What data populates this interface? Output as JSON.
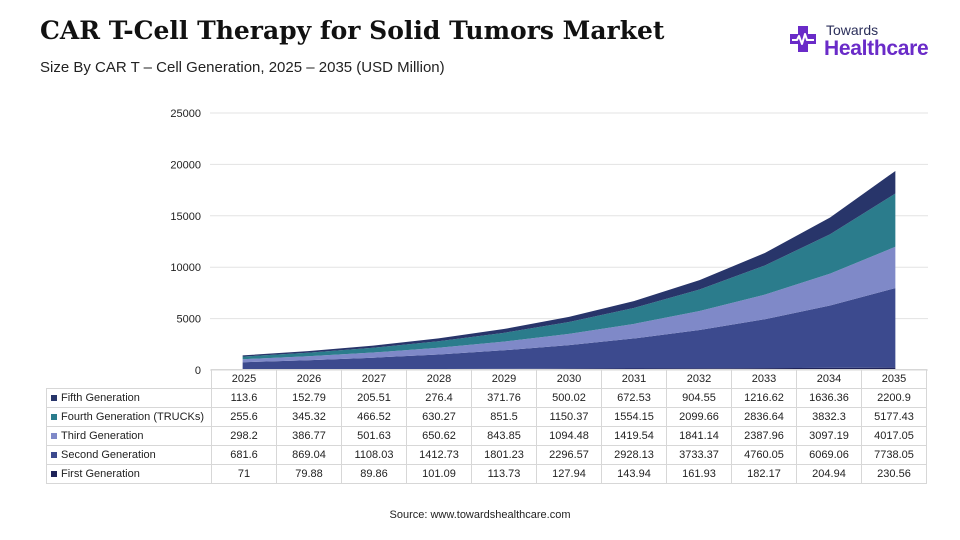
{
  "header": {
    "title": "CAR T-Cell Therapy for Solid Tumors Market",
    "subtitle": "Size By CAR T – Cell Generation, 2025 – 2035 (USD Million)"
  },
  "logo": {
    "line1": "Towards",
    "line2": "Healthcare",
    "colors": {
      "cross": "#6a2bc8",
      "text_dark": "#2b2f5a",
      "text_brand": "#6a2bc8"
    }
  },
  "source": "Source: www.towardshealthcare.com",
  "chart_data": {
    "type": "area",
    "stacked": true,
    "x": [
      "2025",
      "2026",
      "2027",
      "2028",
      "2029",
      "2030",
      "2031",
      "2032",
      "2033",
      "2034",
      "2035"
    ],
    "ylim": [
      0,
      25000
    ],
    "yticks": [
      "0",
      "5000",
      "10000",
      "15000",
      "20000",
      "25000"
    ],
    "grid": true,
    "legend": "data table below chart",
    "series": [
      {
        "name": "First Generation",
        "color": "#1f2359",
        "values": [
          71,
          79.88,
          89.86,
          101.09,
          113.73,
          127.94,
          143.94,
          161.93,
          182.17,
          204.94,
          230.56
        ],
        "display": [
          "71",
          "79.88",
          "89.86",
          "101.09",
          "113.73",
          "127.94",
          "143.94",
          "161.93",
          "182.17",
          "204.94",
          "230.56"
        ]
      },
      {
        "name": "Second Generation",
        "color": "#3c4a8e",
        "values": [
          681.6,
          869.04,
          1108.03,
          1412.73,
          1801.23,
          2296.57,
          2928.13,
          3733.37,
          4760.05,
          6069.06,
          7738.05
        ],
        "display": [
          "681.6",
          "869.04",
          "1108.03",
          "1412.73",
          "1801.23",
          "2296.57",
          "2928.13",
          "3733.37",
          "4760.05",
          "6069.06",
          "7738.05"
        ]
      },
      {
        "name": "Third Generation",
        "color": "#7f89c8",
        "values": [
          298.2,
          386.77,
          501.63,
          650.62,
          843.85,
          1094.48,
          1419.54,
          1841.14,
          2387.96,
          3097.19,
          4017.05
        ],
        "display": [
          "298.2",
          "386.77",
          "501.63",
          "650.62",
          "843.85",
          "1094.48",
          "1419.54",
          "1841.14",
          "2387.96",
          "3097.19",
          "4017.05"
        ]
      },
      {
        "name": "Fourth Generation (TRUCKs)",
        "color": "#2b7c8c",
        "values": [
          255.6,
          345.32,
          466.52,
          630.27,
          851.5,
          1150.37,
          1554.15,
          2099.66,
          2836.64,
          3832.3,
          5177.43
        ],
        "display": [
          "255.6",
          "345.32",
          "466.52",
          "630.27",
          "851.5",
          "1150.37",
          "1554.15",
          "2099.66",
          "2836.64",
          "3832.3",
          "5177.43"
        ]
      },
      {
        "name": "Fifth Generation",
        "color": "#28356a",
        "values": [
          113.6,
          152.79,
          205.51,
          276.4,
          371.76,
          500.02,
          672.53,
          904.55,
          1216.62,
          1636.36,
          2200.9
        ],
        "display": [
          "113.6",
          "152.79",
          "205.51",
          "276.4",
          "371.76",
          "500.02",
          "672.53",
          "904.55",
          "1216.62",
          "1636.36",
          "2200.9"
        ]
      }
    ],
    "table_order": [
      "Fifth Generation",
      "Fourth Generation (TRUCKs)",
      "Third Generation",
      "Second Generation",
      "First Generation"
    ]
  }
}
